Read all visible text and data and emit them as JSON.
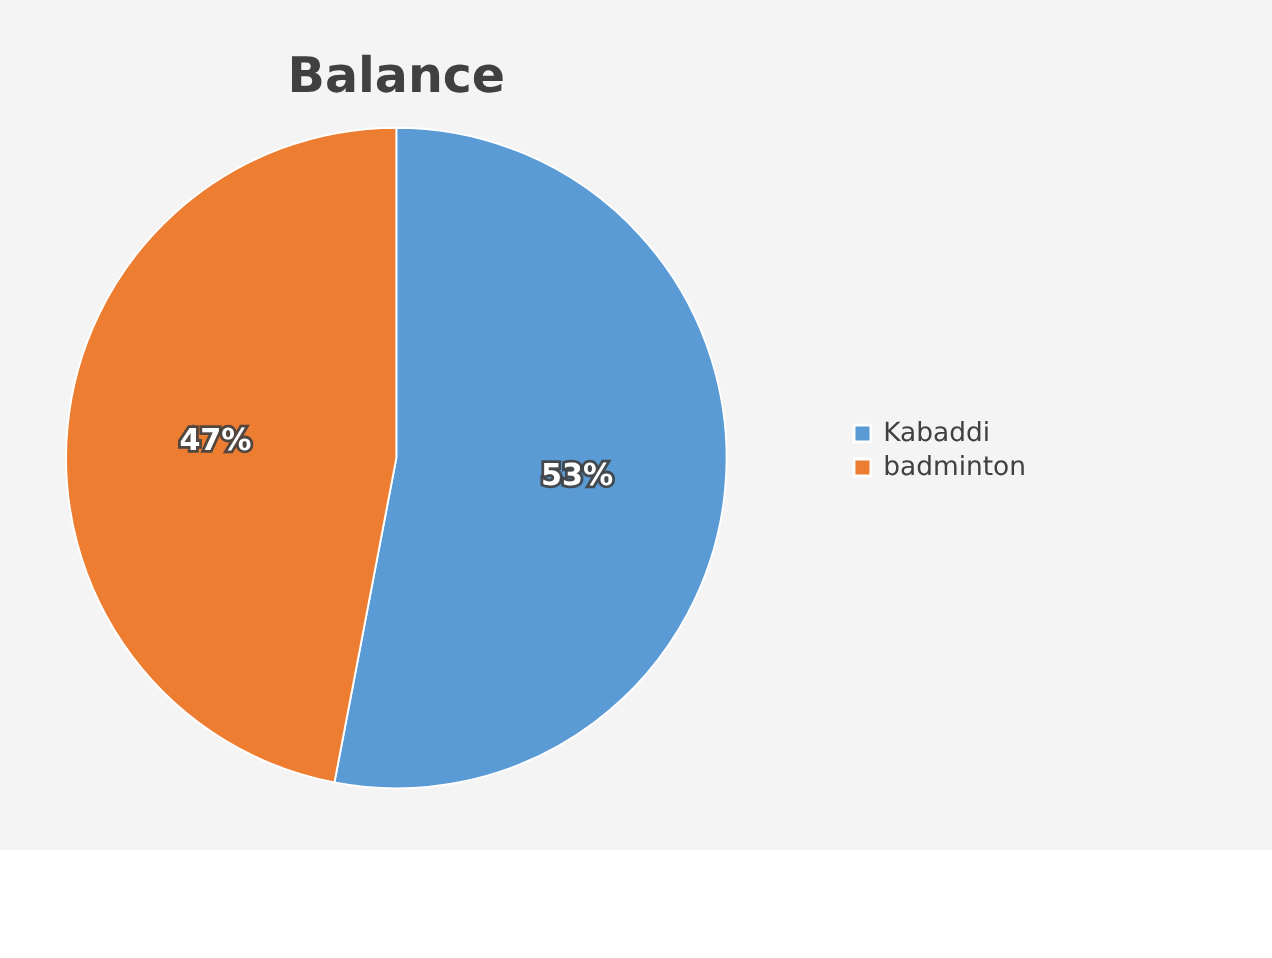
{
  "chart_data": {
    "type": "pie",
    "title": "Balance",
    "categories": [
      "Kabaddi",
      "badminton"
    ],
    "values": [
      53,
      47
    ],
    "colors": [
      "#5b9bd5",
      "#ed7d31"
    ],
    "value_labels": [
      "53%",
      "47%"
    ],
    "legend": "right"
  }
}
